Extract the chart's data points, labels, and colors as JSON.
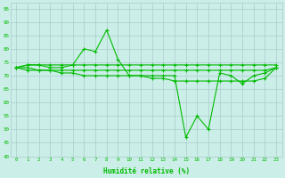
{
  "title": "",
  "xlabel": "Humidité relative (%)",
  "ylabel": "",
  "bg_color": "#cceee8",
  "grid_color": "#aacccc",
  "line_color": "#00bb00",
  "xlim": [
    -0.5,
    23.5
  ],
  "ylim": [
    40,
    97
  ],
  "yticks": [
    40,
    45,
    50,
    55,
    60,
    65,
    70,
    75,
    80,
    85,
    90,
    95
  ],
  "xticks": [
    0,
    1,
    2,
    3,
    4,
    5,
    6,
    7,
    8,
    9,
    10,
    11,
    12,
    13,
    14,
    15,
    16,
    17,
    18,
    19,
    20,
    21,
    22,
    23
  ],
  "series1": [
    73,
    74,
    74,
    73,
    73,
    74,
    80,
    79,
    87,
    76,
    70,
    70,
    70,
    70,
    70,
    47,
    55,
    50,
    71,
    70,
    67,
    70,
    71,
    73
  ],
  "series2": [
    73,
    72,
    72,
    72,
    72,
    72,
    72,
    72,
    72,
    72,
    72,
    72,
    72,
    72,
    72,
    72,
    72,
    72,
    72,
    72,
    72,
    72,
    72,
    73
  ],
  "series3": [
    73,
    73,
    72,
    72,
    71,
    71,
    70,
    70,
    70,
    70,
    70,
    70,
    69,
    69,
    68,
    68,
    68,
    68,
    68,
    68,
    68,
    68,
    69,
    73
  ],
  "series4": [
    73,
    74,
    74,
    74,
    74,
    74,
    74,
    74,
    74,
    74,
    74,
    74,
    74,
    74,
    74,
    74,
    74,
    74,
    74,
    74,
    74,
    74,
    74,
    74
  ]
}
